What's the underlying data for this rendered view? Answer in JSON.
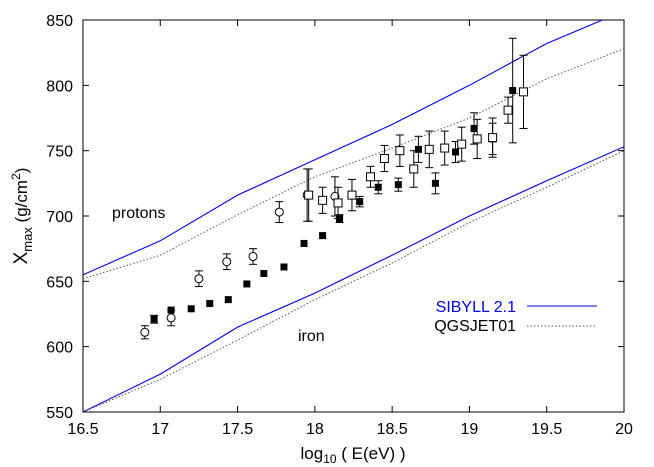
{
  "chart_data": {
    "type": "scatter",
    "xlabel": {
      "pre": "log",
      "sub": "10",
      "post": " ( E(eV) )"
    },
    "ylabel": {
      "pre": "X",
      "sub": "max",
      "mid": "  (g/cm",
      "sup": "2",
      "post": ")"
    },
    "xlim": [
      16.5,
      20
    ],
    "ylim": [
      550,
      850
    ],
    "x_ticks": [
      "16.5",
      "17",
      "17.5",
      "18",
      "18.5",
      "19",
      "19.5",
      "20"
    ],
    "y_ticks": [
      "550",
      "600",
      "650",
      "700",
      "750",
      "800",
      "850"
    ],
    "annotations": {
      "protons": "protons",
      "iron": "iron"
    },
    "colors": {
      "sibyll": "#0000ee",
      "qgsjet": "#555555",
      "markers": "#000000"
    },
    "legend": [
      {
        "name": "SIBYLL 2.1",
        "style": "solid",
        "color": "#0000ee"
      },
      {
        "name": "QGSJET01",
        "style": "dotted",
        "color": "#555555"
      }
    ],
    "lines": [
      {
        "name": "SIBYLL 2.1",
        "group": "protons",
        "style": "solid",
        "color": "#0000ee",
        "x": [
          16.5,
          17,
          17.5,
          18,
          18.5,
          19,
          19.5,
          20
        ],
        "y": [
          655,
          681,
          716,
          743,
          770,
          800,
          832,
          857
        ]
      },
      {
        "name": "QGSJET01",
        "group": "protons",
        "style": "dotted",
        "color": "#555555",
        "x": [
          16.5,
          17,
          17.5,
          18,
          18.5,
          19,
          19.5,
          20
        ],
        "y": [
          652,
          670,
          701,
          730,
          752,
          775,
          805,
          828
        ]
      },
      {
        "name": "SIBYLL 2.1",
        "group": "iron",
        "style": "solid",
        "color": "#0000ee",
        "x": [
          16.5,
          17,
          17.5,
          18,
          18.5,
          19,
          19.5,
          20
        ],
        "y": [
          550,
          579,
          615,
          641,
          670,
          700,
          727,
          753
        ]
      },
      {
        "name": "QGSJET01",
        "group": "iron",
        "style": "dotted",
        "color": "#555555",
        "x": [
          16.5,
          17,
          17.5,
          18,
          18.5,
          19,
          19.5,
          20
        ],
        "y": [
          550,
          575,
          605,
          636,
          664,
          695,
          722,
          750
        ]
      }
    ],
    "series": [
      {
        "marker": "open-circle",
        "points": [
          {
            "x": 16.9,
            "y": 611,
            "err": 5
          },
          {
            "x": 17.07,
            "y": 622,
            "err": 6
          },
          {
            "x": 17.25,
            "y": 652,
            "err": 6
          },
          {
            "x": 17.43,
            "y": 665,
            "err": 6
          },
          {
            "x": 17.6,
            "y": 669,
            "err": 6
          },
          {
            "x": 17.77,
            "y": 703,
            "err": 8
          },
          {
            "x": 17.95,
            "y": 716,
            "err": 20
          },
          {
            "x": 18.13,
            "y": 715,
            "err": 15
          }
        ]
      },
      {
        "marker": "filled-square",
        "points": [
          {
            "x": 16.96,
            "y": 621,
            "err": 3
          },
          {
            "x": 17.07,
            "y": 628,
            "err": 0
          },
          {
            "x": 17.2,
            "y": 629,
            "err": 0
          },
          {
            "x": 17.32,
            "y": 633,
            "err": 0
          },
          {
            "x": 17.44,
            "y": 636,
            "err": 0
          },
          {
            "x": 17.56,
            "y": 648,
            "err": 0
          },
          {
            "x": 17.67,
            "y": 656,
            "err": 0
          },
          {
            "x": 17.8,
            "y": 661,
            "err": 0
          },
          {
            "x": 17.93,
            "y": 679,
            "err": 0
          },
          {
            "x": 18.05,
            "y": 685,
            "err": 0
          },
          {
            "x": 18.16,
            "y": 698,
            "err": 3
          },
          {
            "x": 18.29,
            "y": 711,
            "err": 4
          },
          {
            "x": 18.41,
            "y": 722,
            "err": 5
          },
          {
            "x": 18.54,
            "y": 724,
            "err": 5
          },
          {
            "x": 18.67,
            "y": 751,
            "err": 10
          },
          {
            "x": 18.78,
            "y": 725,
            "err": 8
          },
          {
            "x": 18.91,
            "y": 749,
            "err": 8
          },
          {
            "x": 19.03,
            "y": 767,
            "err": 12
          },
          {
            "x": 19.15,
            "y": 759,
            "err": 12
          },
          {
            "x": 19.28,
            "y": 796,
            "err": 40
          }
        ]
      },
      {
        "marker": "open-square",
        "points": [
          {
            "x": 17.96,
            "y": 716,
            "err": 20
          },
          {
            "x": 18.05,
            "y": 712,
            "err": 10
          },
          {
            "x": 18.15,
            "y": 710,
            "err": 12
          },
          {
            "x": 18.24,
            "y": 716,
            "err": 12
          },
          {
            "x": 18.36,
            "y": 730,
            "err": 8
          },
          {
            "x": 18.45,
            "y": 744,
            "err": 10
          },
          {
            "x": 18.55,
            "y": 750,
            "err": 12
          },
          {
            "x": 18.64,
            "y": 736,
            "err": 14
          },
          {
            "x": 18.74,
            "y": 751,
            "err": 14
          },
          {
            "x": 18.84,
            "y": 752,
            "err": 13
          },
          {
            "x": 18.95,
            "y": 755,
            "err": 13
          },
          {
            "x": 19.05,
            "y": 759,
            "err": 15
          },
          {
            "x": 19.15,
            "y": 760,
            "err": 15
          },
          {
            "x": 19.25,
            "y": 781,
            "err": 10
          },
          {
            "x": 19.35,
            "y": 795,
            "err": 28
          }
        ]
      }
    ],
    "grid": false,
    "legend_position": "bottom-right"
  }
}
